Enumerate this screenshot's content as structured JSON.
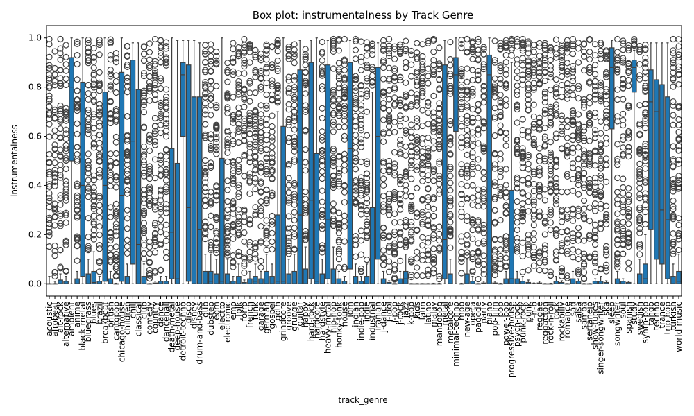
{
  "chart_data": {
    "type": "box",
    "title": "Box plot: instrumentalness by Track Genre",
    "xlabel": "track_genre",
    "ylabel": "instrumentalness",
    "ylim": [
      -0.05,
      1.05
    ],
    "yticks": [
      0.0,
      0.2,
      0.4,
      0.6,
      0.8,
      1.0
    ],
    "ytick_labels": [
      "0.0",
      "0.2",
      "0.4",
      "0.6",
      "0.8",
      "1.0"
    ],
    "grid": false,
    "box_color": "#1f77b4",
    "line_color": "#3f3f3f",
    "categories": [
      "acoustic",
      "afrobeat",
      "alt-rock",
      "alternative",
      "ambient",
      "anime",
      "black-metal",
      "bluegrass",
      "blues",
      "brazil",
      "breakbeat",
      "british",
      "cantopop",
      "chicago-house",
      "children",
      "chill",
      "classical",
      "club",
      "comedy",
      "country",
      "dance",
      "dancehall",
      "death-metal",
      "deep-house",
      "detroit-techno",
      "disco",
      "disney",
      "drum-and-bass",
      "dub",
      "dubstep",
      "edm",
      "electro",
      "electronic",
      "emo",
      "folk",
      "forro",
      "french",
      "funk",
      "garage",
      "german",
      "gospel",
      "goth",
      "grindcore",
      "groove",
      "grunge",
      "guitar",
      "happy",
      "hard-rock",
      "hardcore",
      "hardstyle",
      "heavy-metal",
      "hip-hop",
      "honky-tonk",
      "house",
      "idm",
      "indian",
      "indie-pop",
      "indie",
      "industrial",
      "iranian",
      "j-dance",
      "j-idol",
      "j-pop",
      "j-rock",
      "jazz",
      "k-pop",
      "kids",
      "latin",
      "latino",
      "malay",
      "mandopop",
      "metal",
      "metalcore",
      "minimal-techno",
      "mpb",
      "new-age",
      "opera",
      "pagode",
      "party",
      "piano",
      "pop-film",
      "pop",
      "power-pop",
      "progressive-house",
      "psych-rock",
      "punk-rock",
      "punk",
      "r-n-b",
      "reggae",
      "reggaeton",
      "rock-n-roll",
      "rock",
      "rockabilly",
      "romance",
      "sad",
      "salsa",
      "samba",
      "sertanejo",
      "show-tunes",
      "singer-songwriter",
      "ska",
      "sleep",
      "songwriter",
      "soul",
      "spanish",
      "study",
      "swedish",
      "synth-pop",
      "tango",
      "techno",
      "trance",
      "trip-hop",
      "turkish",
      "world-music"
    ],
    "series": [
      {
        "stats": [
          [
            0.0,
            0.0,
            0.0,
            0.0,
            0.03
          ],
          [
            0.0,
            0.0,
            0.0,
            0.0,
            0.01
          ],
          [
            0.0,
            0.0,
            0.0,
            0.015,
            0.04
          ],
          [
            0.0,
            0.0,
            0.0,
            0.01,
            0.03
          ],
          [
            0.0,
            0.5,
            0.8,
            0.92,
            1.0
          ],
          [
            0.0,
            0.0,
            0.0,
            0.02,
            0.05
          ],
          [
            0.0,
            0.03,
            0.4,
            0.82,
            1.0
          ],
          [
            0.0,
            0.0,
            0.0,
            0.04,
            0.1
          ],
          [
            0.0,
            0.0,
            0.005,
            0.05,
            0.13
          ],
          [
            0.0,
            0.0,
            0.0,
            0.01,
            0.03
          ],
          [
            0.0,
            0.01,
            0.4,
            0.78,
            1.0
          ],
          [
            0.0,
            0.0,
            0.0,
            0.02,
            0.05
          ],
          [
            0.0,
            0.0,
            0.0,
            0.0,
            0.002
          ],
          [
            0.0,
            0.01,
            0.36,
            0.86,
            1.0
          ],
          [
            0.0,
            0.0,
            0.0,
            0.03,
            0.08
          ],
          [
            0.0,
            0.08,
            0.58,
            0.91,
            0.98
          ],
          [
            0.0,
            0.0,
            0.16,
            0.79,
            0.98
          ],
          [
            0.0,
            0.0,
            0.0,
            0.03,
            0.08
          ],
          [
            0.0,
            0.0,
            0.0,
            0.0,
            0.001
          ],
          [
            0.0,
            0.0,
            0.0,
            0.003,
            0.01
          ],
          [
            0.0,
            0.0,
            0.0,
            0.01,
            0.03
          ],
          [
            0.0,
            0.0,
            0.0,
            0.01,
            0.03
          ],
          [
            0.0,
            0.02,
            0.21,
            0.55,
            1.0
          ],
          [
            0.0,
            0.0,
            0.02,
            0.49,
            0.99
          ],
          [
            0.0,
            0.6,
            0.85,
            0.9,
            0.99
          ],
          [
            0.0,
            0.01,
            0.31,
            0.89,
            0.99
          ],
          [
            0.0,
            0.0,
            0.0,
            0.76,
            0.99
          ],
          [
            0.0,
            0.0,
            0.22,
            0.76,
            0.98
          ],
          [
            0.0,
            0.0,
            0.0,
            0.05,
            0.12
          ],
          [
            0.0,
            0.0,
            0.01,
            0.05,
            0.12
          ],
          [
            0.0,
            0.0,
            0.0,
            0.04,
            0.1
          ],
          [
            0.0,
            0.0,
            0.01,
            0.51,
            1.0
          ],
          [
            0.0,
            0.0,
            0.0,
            0.04,
            0.1
          ],
          [
            0.0,
            0.0,
            0.0,
            0.01,
            0.03
          ],
          [
            0.0,
            0.0,
            0.0,
            0.03,
            0.08
          ],
          [
            0.0,
            0.0,
            0.0,
            0.005,
            0.015
          ],
          [
            0.0,
            0.0,
            0.0,
            0.02,
            0.05
          ],
          [
            0.0,
            0.0,
            0.01,
            0.03,
            0.08
          ],
          [
            0.0,
            0.0,
            0.0,
            0.02,
            0.05
          ],
          [
            0.0,
            0.0,
            0.0,
            0.05,
            0.12
          ],
          [
            0.0,
            0.0,
            0.0,
            0.03,
            0.08
          ],
          [
            0.0,
            0.0,
            0.01,
            0.28,
            0.7
          ],
          [
            0.0,
            0.0,
            0.01,
            0.64,
            1.0
          ],
          [
            0.0,
            0.0,
            0.0,
            0.04,
            0.1
          ],
          [
            0.0,
            0.0,
            0.0,
            0.05,
            0.12
          ],
          [
            0.0,
            0.0,
            0.28,
            0.87,
            0.99
          ],
          [
            0.0,
            0.0,
            0.0,
            0.06,
            0.15
          ],
          [
            0.0,
            0.02,
            0.34,
            0.9,
            0.99
          ],
          [
            0.0,
            0.0,
            0.01,
            0.53,
            1.0
          ],
          [
            0.0,
            0.0,
            0.0,
            0.04,
            0.1
          ],
          [
            0.0,
            0.02,
            0.26,
            0.89,
            0.99
          ],
          [
            0.0,
            0.0,
            0.0,
            0.06,
            0.15
          ],
          [
            0.0,
            0.0,
            0.0,
            0.02,
            0.05
          ],
          [
            0.0,
            0.0,
            0.0,
            0.01,
            0.03
          ],
          [
            0.0,
            0.06,
            0.55,
            0.9,
            0.99
          ],
          [
            0.0,
            0.0,
            0.0,
            0.03,
            0.08
          ],
          [
            0.0,
            0.0,
            0.0,
            0.01,
            0.03
          ],
          [
            0.0,
            0.0,
            0.0,
            0.03,
            0.08
          ],
          [
            0.0,
            0.0,
            0.0,
            0.31,
            0.78
          ],
          [
            0.0,
            0.1,
            0.6,
            0.88,
            0.98
          ],
          [
            0.0,
            0.0,
            0.0,
            0.02,
            0.05
          ],
          [
            0.0,
            0.0,
            0.0,
            0.005,
            0.012
          ],
          [
            0.0,
            0.0,
            0.0,
            0.0,
            0.001
          ],
          [
            0.0,
            0.0,
            0.0,
            0.02,
            0.05
          ],
          [
            0.0,
            0.0,
            0.02,
            0.05,
            0.12
          ],
          [
            0.0,
            0.0,
            0.0,
            0.0,
            0.001
          ],
          [
            0.0,
            0.0,
            0.0,
            0.0,
            0.001
          ],
          [
            0.0,
            0.0,
            0.0,
            0.0,
            0.001
          ],
          [
            0.0,
            0.0,
            0.0,
            0.0,
            0.001
          ],
          [
            0.0,
            0.0,
            0.0,
            0.0,
            0.002
          ],
          [
            0.0,
            0.0,
            0.0,
            0.0,
            0.002
          ],
          [
            0.0,
            0.02,
            0.18,
            0.89,
            0.99
          ],
          [
            0.0,
            0.0,
            0.0,
            0.04,
            0.1
          ],
          [
            0.0,
            0.62,
            0.85,
            0.92,
            1.0
          ],
          [
            0.0,
            0.0,
            0.0,
            0.0,
            0.002
          ],
          [
            0.0,
            0.0,
            0.0,
            0.04,
            0.1
          ],
          [
            0.0,
            0.0,
            0.0,
            0.01,
            0.03
          ],
          [
            0.0,
            0.0,
            0.0,
            0.0,
            0.001
          ],
          [
            0.0,
            0.0,
            0.0,
            0.003,
            0.01
          ],
          [
            0.0,
            0.0,
            0.85,
            0.93,
            1.0
          ],
          [
            0.0,
            0.0,
            0.0,
            0.003,
            0.01
          ],
          [
            0.0,
            0.0,
            0.0,
            0.0,
            0.002
          ],
          [
            0.0,
            0.0,
            0.0,
            0.02,
            0.05
          ],
          [
            0.0,
            0.0,
            0.02,
            0.38,
            0.9
          ],
          [
            0.0,
            0.0,
            0.0,
            0.02,
            0.05
          ],
          [
            0.0,
            0.0,
            0.0,
            0.01,
            0.03
          ],
          [
            0.0,
            0.0,
            0.0,
            0.005,
            0.015
          ],
          [
            0.0,
            0.0,
            0.0,
            0.001,
            0.003
          ],
          [
            0.0,
            0.0,
            0.0,
            0.003,
            0.01
          ],
          [
            0.0,
            0.0,
            0.0,
            0.0,
            0.001
          ],
          [
            0.0,
            0.0,
            0.0,
            0.0,
            0.002
          ],
          [
            0.0,
            0.0,
            0.0,
            0.01,
            0.03
          ],
          [
            0.0,
            0.0,
            0.0,
            0.005,
            0.012
          ],
          [
            0.0,
            0.0,
            0.0,
            0.0,
            0.001
          ],
          [
            0.0,
            0.0,
            0.0,
            0.02,
            0.05
          ],
          [
            0.0,
            0.0,
            0.0,
            0.01,
            0.02
          ],
          [
            0.0,
            0.0,
            0.0,
            0.0,
            0.001
          ],
          [
            0.0,
            0.0,
            0.0,
            0.0,
            0.001
          ],
          [
            0.0,
            0.0,
            0.0,
            0.01,
            0.02
          ],
          [
            0.0,
            0.0,
            0.0,
            0.01,
            0.03
          ],
          [
            0.0,
            0.0,
            0.0,
            0.005,
            0.012
          ],
          [
            0.0,
            0.63,
            0.88,
            0.96,
            0.99
          ],
          [
            0.0,
            0.0,
            0.0,
            0.02,
            0.05
          ],
          [
            0.0,
            0.0,
            0.0,
            0.01,
            0.02
          ],
          [
            0.0,
            0.0,
            0.0,
            0.005,
            0.01
          ],
          [
            0.0,
            0.78,
            0.88,
            0.91,
            0.95
          ],
          [
            0.0,
            0.0,
            0.0,
            0.04,
            0.1
          ],
          [
            0.0,
            0.0,
            0.02,
            0.08,
            0.2
          ],
          [
            0.0,
            0.22,
            0.74,
            0.87,
            0.98
          ],
          [
            0.0,
            0.1,
            0.7,
            0.83,
            0.98
          ],
          [
            0.0,
            0.08,
            0.3,
            0.81,
            0.98
          ],
          [
            0.0,
            0.02,
            0.26,
            0.76,
            0.98
          ],
          [
            0.0,
            0.0,
            0.0,
            0.03,
            0.08
          ],
          [
            0.0,
            0.0,
            0.01,
            0.05,
            0.12
          ]
        ]
      }
    ]
  }
}
